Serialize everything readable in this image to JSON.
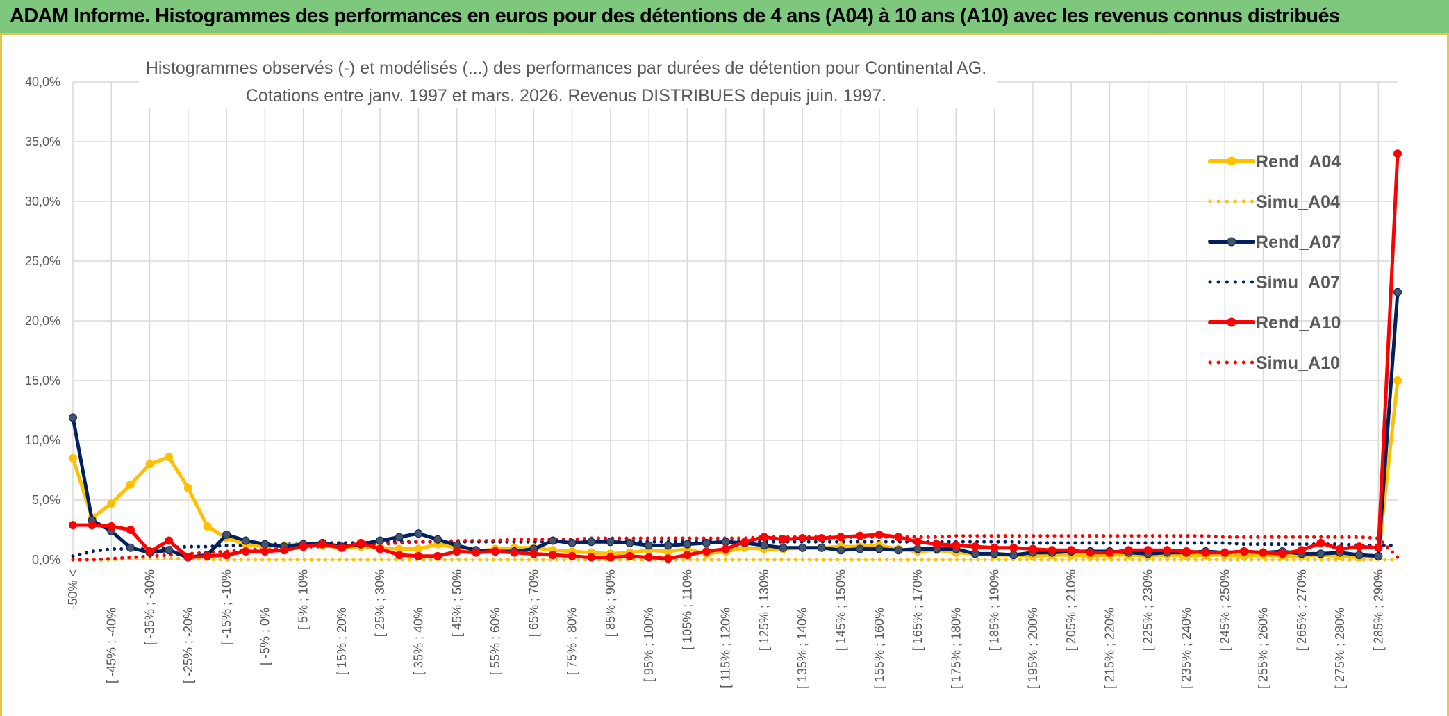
{
  "banner": {
    "title": "ADAM Informe. Histogrammes des performances en euros pour des détentions de 4 ans (A04) à 10 ans (A10) avec les revenus connus distribués"
  },
  "chart_data": {
    "type": "line",
    "title": "Histogrammes observés (-) et modélisés (...) des performances par durées de détention pour Continental AG.",
    "subtitle": "Cotations entre janv. 1997 et mars. 2026. Revenus DISTRIBUES depuis juin. 1997.",
    "xlabel": "",
    "ylabel": "",
    "ylim": [
      0,
      40
    ],
    "y_ticks": [
      "0,0%",
      "5,0%",
      "10,0%",
      "15,0%",
      "20,0%",
      "25,0%",
      "30,0%",
      "35,0%",
      "40,0%"
    ],
    "grid": true,
    "legend_position": "right",
    "categories_shown": [
      "-50% <",
      "[ -45% ; -40%",
      "[ -35% ; -30%",
      "[ -25% ; -20%",
      "[ -15% ; -10%",
      "[ -5% ; 0%",
      "[ 5% ; 10%",
      "[ 15% ; 20%",
      "[ 25% ; 30%",
      "[ 35% ; 40%",
      "[ 45% ; 50%",
      "[ 55% ; 60%",
      "[ 65% ; 70%",
      "[ 75% ; 80%",
      "[ 85% ; 90%",
      "[ 95% ; 100%",
      "[ 105% ; 110%",
      "[ 115% ; 120%",
      "[ 125% ; 130%",
      "[ 135% ; 140%",
      "[ 145% ; 150%",
      "[ 155% ; 160%",
      "[ 165% ; 170%",
      "[ 175% ; 180%",
      "[ 185% ; 190%",
      "[ 195% ; 200%",
      "[ 205% ; 210%",
      "[ 215% ; 220%",
      "[ 225% ; 230%",
      "[ 235% ; 240%",
      "[ 245% ; 250%",
      "[ 255% ; 260%",
      "[ 265% ; 270%",
      "[ 275% ; 280%",
      "[ 285% ; 290%"
    ],
    "x_count": 70,
    "series": [
      {
        "name": "Rend_A04",
        "color": "#ffc000",
        "style": "solid",
        "markers": true,
        "values": [
          8.5,
          3.5,
          4.7,
          6.3,
          8.0,
          8.6,
          6.0,
          2.8,
          1.8,
          1.3,
          1.1,
          1.2,
          1.3,
          1.2,
          1.0,
          1.1,
          1.0,
          0.9,
          0.9,
          1.3,
          1.0,
          0.7,
          0.9,
          1.0,
          1.0,
          0.8,
          0.7,
          0.6,
          0.5,
          0.6,
          0.8,
          0.7,
          0.9,
          0.5,
          0.7,
          1.0,
          0.9,
          0.9,
          1.0,
          1.0,
          1.1,
          1.1,
          1.2,
          0.9,
          0.7,
          0.8,
          0.6,
          0.5,
          0.4,
          0.4,
          0.3,
          0.4,
          0.4,
          0.3,
          0.4,
          0.4,
          0.3,
          0.4,
          0.3,
          0.4,
          0.4,
          0.3,
          0.4,
          0.3,
          0.3,
          0.4,
          0.3,
          0.2,
          0.3,
          15.0
        ]
      },
      {
        "name": "Simu_A04",
        "color": "#ffc000",
        "style": "dotted",
        "markers": false,
        "values": [
          0.0,
          0.0,
          0.0,
          0.1,
          0.1,
          0.1,
          0.1,
          0.0,
          0.0,
          0.0,
          0.0,
          0.0,
          0.0,
          0.0,
          0.0,
          0.0,
          0.0,
          0.0,
          0.0,
          0.0,
          0.0,
          0.0,
          0.0,
          0.0,
          0.0,
          0.0,
          0.0,
          0.0,
          0.0,
          0.0,
          0.0,
          0.0,
          0.0,
          0.0,
          0.0,
          0.0,
          0.0,
          0.0,
          0.0,
          0.0,
          0.0,
          0.0,
          0.0,
          0.0,
          0.0,
          0.0,
          0.0,
          0.0,
          0.0,
          0.0,
          0.0,
          0.0,
          0.0,
          0.0,
          0.0,
          0.0,
          0.0,
          0.0,
          0.0,
          0.0,
          0.0,
          0.0,
          0.0,
          0.0,
          0.0,
          0.0,
          0.0,
          0.0,
          0.0,
          0.0
        ]
      },
      {
        "name": "Rend_A07",
        "color": "#002060",
        "style": "solid",
        "markers": true,
        "values": [
          11.9,
          3.3,
          2.4,
          1.0,
          0.6,
          0.8,
          0.2,
          0.4,
          2.1,
          1.6,
          1.3,
          1.1,
          1.3,
          1.4,
          1.1,
          1.3,
          1.6,
          1.9,
          2.2,
          1.7,
          1.2,
          0.8,
          0.7,
          0.7,
          0.9,
          1.6,
          1.4,
          1.5,
          1.5,
          1.4,
          1.2,
          1.2,
          1.3,
          1.4,
          1.5,
          1.4,
          1.2,
          1.0,
          1.0,
          1.0,
          0.8,
          0.9,
          0.9,
          0.8,
          0.9,
          0.9,
          0.9,
          0.5,
          0.5,
          0.4,
          0.6,
          0.6,
          0.7,
          0.7,
          0.7,
          0.6,
          0.5,
          0.6,
          0.6,
          0.7,
          0.6,
          0.7,
          0.6,
          0.7,
          0.5,
          0.5,
          0.6,
          0.4,
          0.3,
          22.4
        ]
      },
      {
        "name": "Simu_A07",
        "color": "#002060",
        "style": "dotted",
        "markers": false,
        "values": [
          0.3,
          0.7,
          0.9,
          0.9,
          0.9,
          1.0,
          1.1,
          1.1,
          1.2,
          1.2,
          1.3,
          1.3,
          1.3,
          1.4,
          1.4,
          1.4,
          1.5,
          1.5,
          1.5,
          1.5,
          1.5,
          1.5,
          1.5,
          1.5,
          1.5,
          1.5,
          1.5,
          1.5,
          1.5,
          1.5,
          1.5,
          1.5,
          1.5,
          1.5,
          1.5,
          1.5,
          1.5,
          1.5,
          1.5,
          1.5,
          1.5,
          1.5,
          1.5,
          1.5,
          1.5,
          1.5,
          1.5,
          1.5,
          1.5,
          1.5,
          1.4,
          1.4,
          1.4,
          1.4,
          1.4,
          1.4,
          1.4,
          1.4,
          1.4,
          1.4,
          1.4,
          1.3,
          1.3,
          1.3,
          1.3,
          1.3,
          1.3,
          1.2,
          1.2,
          1.2
        ]
      },
      {
        "name": "Rend_A10",
        "color": "#ff0000",
        "style": "solid",
        "markers": true,
        "values": [
          2.9,
          2.9,
          2.8,
          2.5,
          0.7,
          1.6,
          0.2,
          0.3,
          0.4,
          0.7,
          0.7,
          0.8,
          1.1,
          1.3,
          1.0,
          1.4,
          0.9,
          0.4,
          0.3,
          0.3,
          0.7,
          0.6,
          0.7,
          0.6,
          0.5,
          0.4,
          0.3,
          0.2,
          0.2,
          0.3,
          0.2,
          0.1,
          0.4,
          0.7,
          0.9,
          1.5,
          1.9,
          1.7,
          1.8,
          1.8,
          1.9,
          2.0,
          2.1,
          1.9,
          1.5,
          1.3,
          1.2,
          1.1,
          1.0,
          1.0,
          0.9,
          0.8,
          0.8,
          0.6,
          0.6,
          0.8,
          0.8,
          0.8,
          0.7,
          0.6,
          0.6,
          0.7,
          0.6,
          0.5,
          0.8,
          1.4,
          0.9,
          1.1,
          1.0,
          34.0
        ]
      },
      {
        "name": "Simu_A10",
        "color": "#ff0000",
        "style": "dotted",
        "markers": false,
        "values": [
          0.0,
          0.0,
          0.1,
          0.2,
          0.3,
          0.4,
          0.5,
          0.6,
          0.7,
          0.8,
          0.9,
          1.0,
          1.1,
          1.1,
          1.2,
          1.3,
          1.3,
          1.4,
          1.5,
          1.5,
          1.6,
          1.6,
          1.6,
          1.7,
          1.7,
          1.7,
          1.7,
          1.8,
          1.8,
          1.8,
          1.8,
          1.8,
          1.8,
          1.8,
          1.8,
          1.8,
          1.9,
          1.9,
          1.9,
          1.9,
          1.9,
          1.9,
          1.9,
          1.9,
          1.9,
          1.9,
          2.0,
          2.0,
          2.0,
          2.0,
          2.0,
          2.0,
          2.0,
          2.0,
          2.0,
          2.0,
          2.0,
          2.0,
          2.0,
          2.0,
          1.9,
          1.9,
          1.9,
          1.9,
          1.9,
          1.9,
          1.9,
          1.9,
          1.8,
          0.2
        ]
      }
    ]
  }
}
